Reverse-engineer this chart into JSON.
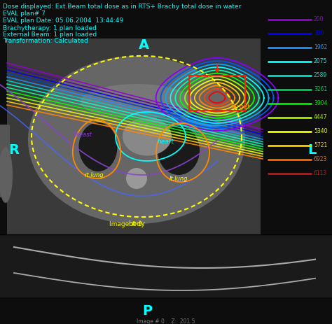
{
  "background_color": "#0d0d0d",
  "title_lines": [
    "Dose displayed: Ext.Beam total dose as in RTS+ Brachy total dose in water",
    "EVAL plan# 7",
    "EVAL plan Date: 05.06.2004  13:44:49",
    "Brachytherapy: 1 plan loaded",
    "External Beam: 1 plan loaded",
    "Transformation: Calculated"
  ],
  "title_color": "#00ffff",
  "legend_entries": [
    {
      "label": "200",
      "color": "#9400d3"
    },
    {
      "label": "300",
      "color": "#0000ff"
    },
    {
      "label": "1962",
      "color": "#1e90ff"
    },
    {
      "label": "2075",
      "color": "#00ffff"
    },
    {
      "label": "2589",
      "color": "#00e0c0"
    },
    {
      "label": "3261",
      "color": "#00cc55"
    },
    {
      "label": "3904",
      "color": "#00ee00"
    },
    {
      "label": "4447",
      "color": "#aaee00"
    },
    {
      "label": "5340",
      "color": "#eeff00"
    },
    {
      "label": "5721",
      "color": "#ffcc00"
    },
    {
      "label": "6923",
      "color": "#ff6600"
    },
    {
      "label": "6113",
      "color": "#cc1111"
    }
  ],
  "ct_bg_color": "#555555",
  "ct_dark_color": "#222222",
  "body_color": "#ffff00",
  "heart_color": "#00ffff",
  "breast_color": "#5555ff",
  "lung_color": "#ff8800",
  "purple_contour": "#8844cc",
  "blue_contour": "#4466ff",
  "target_red": "#ff2200",
  "label_yellow": "#ffff00",
  "bottom_text": "Image # 0    Z:  201.5"
}
